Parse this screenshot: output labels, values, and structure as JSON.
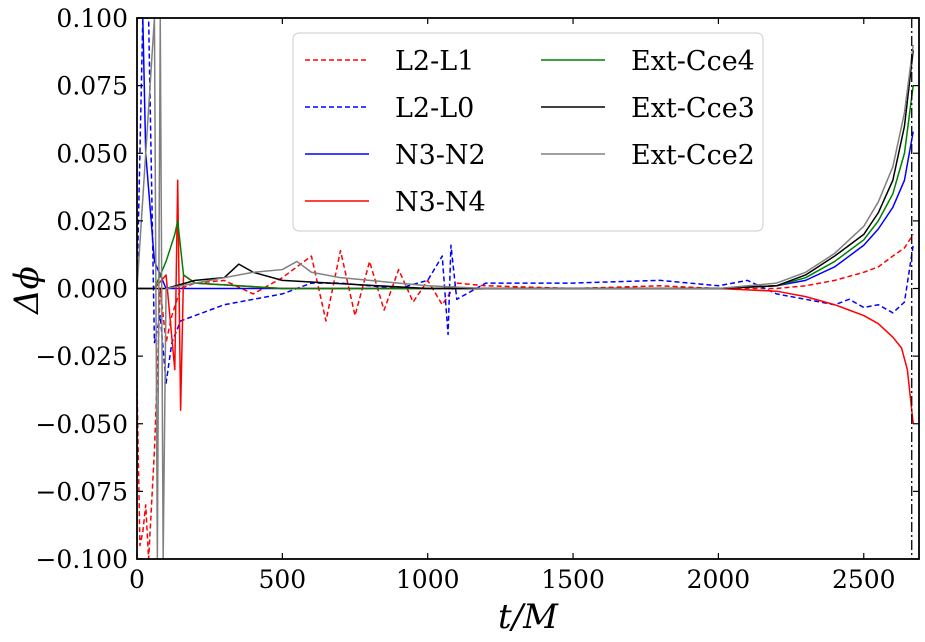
{
  "chart_data": {
    "type": "line",
    "title": "",
    "xlabel": "t/M",
    "ylabel": "Δϕ",
    "xlim": [
      0,
      2690
    ],
    "ylim": [
      -0.1,
      0.1
    ],
    "x_ticks": [
      0,
      500,
      1000,
      1500,
      2000,
      2500
    ],
    "x_tick_labels": [
      "0",
      "500",
      "1000",
      "1500",
      "2000",
      "2500"
    ],
    "y_ticks": [
      -0.1,
      -0.075,
      -0.05,
      -0.025,
      0,
      0.025,
      0.05,
      0.075,
      0.1
    ],
    "y_tick_labels": [
      "−0.100",
      "−0.075",
      "−0.050",
      "−0.025",
      "0.000",
      "0.025",
      "0.050",
      "0.075",
      "0.100"
    ],
    "grid": false,
    "legend_position": "top-center",
    "legend_columns": 2,
    "vertical_lines": [
      {
        "x": 2665,
        "style": "dashdot",
        "color": "#000000"
      }
    ],
    "series": [
      {
        "name": "L2-L1",
        "color": "#ff0000",
        "dash": "dashed",
        "x": [
          0,
          10,
          20,
          30,
          40,
          60,
          80,
          100,
          120,
          150,
          200,
          300,
          400,
          500,
          600,
          650,
          700,
          750,
          800,
          850,
          900,
          950,
          1000,
          1050,
          1100,
          1200,
          1500,
          1800,
          2000,
          2200,
          2300,
          2400,
          2500,
          2550,
          2600,
          2640,
          2670
        ],
        "y": [
          -0.035,
          -0.095,
          -0.09,
          -0.08,
          -0.1,
          -0.06,
          0.0,
          -0.02,
          -0.01,
          0.0,
          0.002,
          0.003,
          -0.002,
          0.004,
          0.012,
          -0.012,
          0.014,
          -0.01,
          0.01,
          -0.008,
          0.007,
          -0.005,
          0.003,
          -0.006,
          0.002,
          0.001,
          0.0,
          0.001,
          0.0,
          0.0,
          0.001,
          0.003,
          0.006,
          0.008,
          0.012,
          0.015,
          0.02
        ]
      },
      {
        "name": "L2-L0",
        "color": "#0000ff",
        "dash": "dashed",
        "x": [
          0,
          10,
          20,
          40,
          60,
          80,
          100,
          120,
          150,
          200,
          300,
          400,
          500,
          600,
          700,
          800,
          900,
          1000,
          1050,
          1070,
          1080,
          1100,
          1200,
          1500,
          1800,
          2000,
          2100,
          2200,
          2300,
          2400,
          2450,
          2500,
          2550,
          2600,
          2640,
          2670
        ],
        "y": [
          0.0,
          0.05,
          0.1,
          0.1,
          -0.02,
          -0.01,
          -0.035,
          -0.02,
          -0.012,
          -0.01,
          -0.006,
          -0.004,
          -0.002,
          0.002,
          0.002,
          0.001,
          0.0,
          0.003,
          0.012,
          -0.017,
          0.016,
          -0.004,
          0.002,
          0.002,
          0.003,
          0.001,
          0.003,
          -0.002,
          -0.004,
          -0.006,
          -0.004,
          -0.007,
          -0.006,
          -0.009,
          -0.005,
          0.016
        ]
      },
      {
        "name": "N3-N2",
        "color": "#0000ff",
        "dash": "solid",
        "x": [
          0,
          10,
          20,
          30,
          60,
          100,
          200,
          500,
          1000,
          1500,
          2000,
          2200,
          2300,
          2400,
          2450,
          2500,
          2550,
          2600,
          2640,
          2670
        ],
        "y": [
          0.1,
          0.1,
          0.1,
          0.05,
          0.01,
          0.0,
          0.0,
          0.0,
          0.0,
          0.0,
          0.0,
          0.001,
          0.003,
          0.008,
          0.012,
          0.016,
          0.022,
          0.03,
          0.04,
          0.058
        ]
      },
      {
        "name": "N3-N4",
        "color": "#ff0000",
        "dash": "solid",
        "x": [
          0,
          60,
          100,
          130,
          140,
          150,
          160,
          200,
          500,
          1000,
          1500,
          2000,
          2200,
          2300,
          2400,
          2450,
          2500,
          2550,
          2600,
          2630,
          2650,
          2670
        ],
        "y": [
          0.0,
          0.0,
          0.005,
          -0.03,
          0.04,
          -0.045,
          0.005,
          0.002,
          0.0,
          0.0,
          0.0,
          0.0,
          -0.001,
          -0.003,
          -0.006,
          -0.008,
          -0.01,
          -0.013,
          -0.018,
          -0.022,
          -0.03,
          -0.05
        ]
      },
      {
        "name": "Ext-Cce4",
        "color": "#008000",
        "dash": "solid",
        "x": [
          0,
          60,
          100,
          130,
          140,
          160,
          200,
          500,
          1000,
          1500,
          2000,
          2200,
          2300,
          2400,
          2450,
          2500,
          2550,
          2600,
          2640,
          2670
        ],
        "y": [
          0.0,
          0.0,
          0.01,
          0.02,
          0.025,
          0.005,
          0.002,
          0.0,
          0.0,
          0.0,
          0.0,
          0.001,
          0.004,
          0.01,
          0.014,
          0.018,
          0.025,
          0.035,
          0.05,
          0.075
        ]
      },
      {
        "name": "Ext-Cce3",
        "color": "#000000",
        "dash": "solid",
        "x": [
          0,
          60,
          100,
          200,
          300,
          350,
          400,
          500,
          1000,
          1500,
          2000,
          2200,
          2300,
          2400,
          2450,
          2500,
          2550,
          2600,
          2640,
          2670
        ],
        "y": [
          0.0,
          0.0,
          0.0,
          0.003,
          0.004,
          0.009,
          0.006,
          0.003,
          0.0,
          0.0,
          0.0,
          0.001,
          0.005,
          0.012,
          0.016,
          0.02,
          0.028,
          0.04,
          0.06,
          0.088
        ]
      },
      {
        "name": "Ext-Cce2",
        "color": "#808080",
        "dash": "solid",
        "x": [
          0,
          60,
          70,
          80,
          90,
          100,
          200,
          300,
          400,
          500,
          550,
          600,
          700,
          800,
          900,
          1000,
          1200,
          1500,
          2000,
          2200,
          2300,
          2400,
          2450,
          2500,
          2550,
          2600,
          2640,
          2670
        ],
        "y": [
          0.0,
          0.1,
          -0.1,
          0.1,
          -0.1,
          0.0,
          0.002,
          0.004,
          0.006,
          0.007,
          0.01,
          0.006,
          0.004,
          0.003,
          0.002,
          0.001,
          0.0,
          0.0,
          0.0,
          0.002,
          0.006,
          0.013,
          0.018,
          0.023,
          0.032,
          0.045,
          0.065,
          0.09
        ]
      }
    ]
  }
}
